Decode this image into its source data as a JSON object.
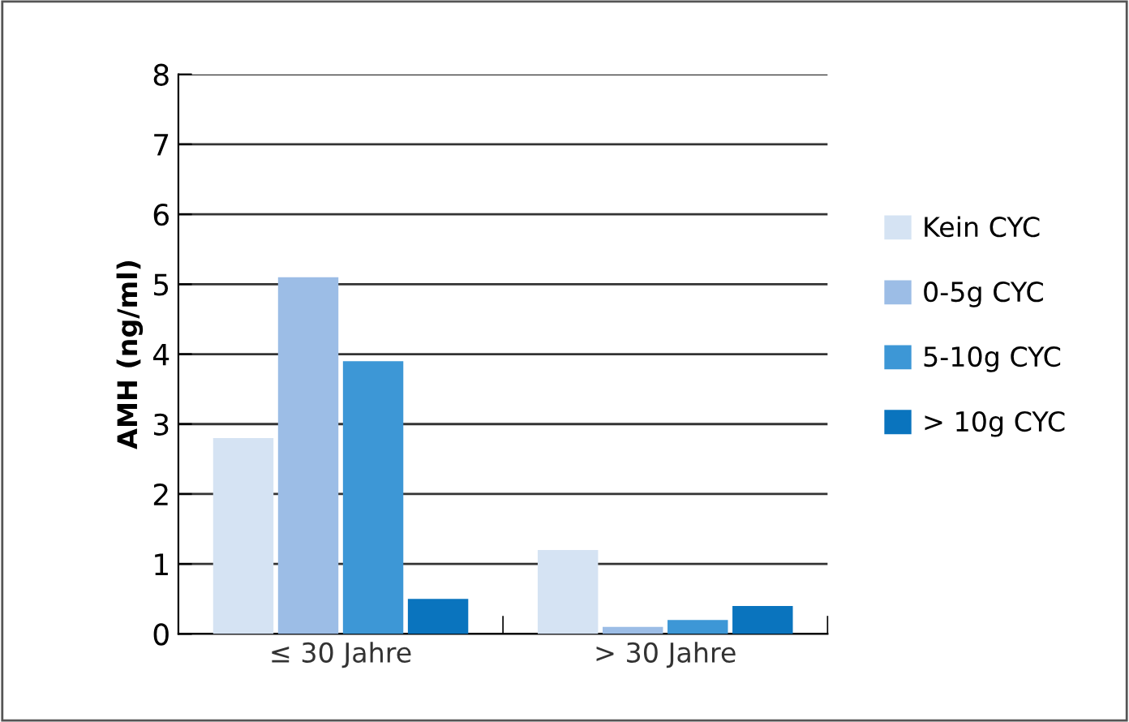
{
  "chart_data": {
    "type": "bar",
    "ylabel": "AMH (ng/ml)",
    "categories": [
      "≤ 30 Jahre",
      "> 30 Jahre"
    ],
    "series": [
      {
        "name": "Kein CYC",
        "color": "#d5e3f3",
        "values": [
          2.8,
          1.2
        ]
      },
      {
        "name": "0-5g CYC",
        "color": "#9cbde6",
        "values": [
          5.1,
          0.1
        ]
      },
      {
        "name": "5-10g CYC",
        "color": "#3d97d6",
        "values": [
          3.9,
          0.2
        ]
      },
      {
        "name": "> 10g CYC",
        "color": "#0a74be",
        "values": [
          0.5,
          0.4
        ]
      }
    ],
    "ylim": [
      0,
      8
    ],
    "yticks": [
      0,
      1,
      2,
      3,
      4,
      5,
      6,
      7,
      8
    ],
    "grid": "y",
    "legend": "right"
  }
}
